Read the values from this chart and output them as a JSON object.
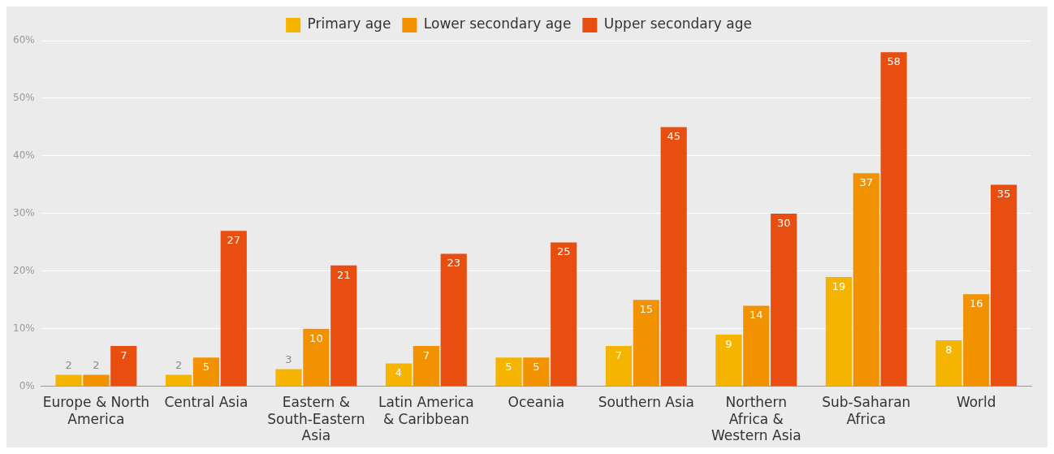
{
  "chart_data": {
    "type": "bar",
    "categories": [
      "Europe & North America",
      "Central Asia",
      "Eastern & South-Eastern Asia",
      "Latin America & Caribbean",
      "Oceania",
      "Southern Asia",
      "Northern Africa & Western Asia",
      "Sub-Saharan Africa",
      "World"
    ],
    "series": [
      {
        "name": "Primary age",
        "color": "#f5b400",
        "values": [
          2,
          2,
          3,
          4,
          5,
          7,
          9,
          19,
          8
        ]
      },
      {
        "name": "Lower secondary age",
        "color": "#f39200",
        "values": [
          2,
          5,
          10,
          7,
          5,
          15,
          14,
          37,
          16
        ]
      },
      {
        "name": "Upper secondary age",
        "color": "#e84e0f",
        "values": [
          7,
          27,
          21,
          23,
          25,
          45,
          30,
          58,
          35
        ]
      }
    ],
    "ylim": [
      0,
      60
    ],
    "yticks": [
      {
        "value": 0,
        "label": "0%"
      },
      {
        "value": 10,
        "label": "10%"
      },
      {
        "value": 20,
        "label": "20%"
      },
      {
        "value": 30,
        "label": "30%"
      },
      {
        "value": 40,
        "label": "40%"
      },
      {
        "value": 50,
        "label": "50%"
      },
      {
        "value": 60,
        "label": "60%"
      }
    ],
    "grid": "y",
    "legend": "top",
    "data_labels": true
  }
}
